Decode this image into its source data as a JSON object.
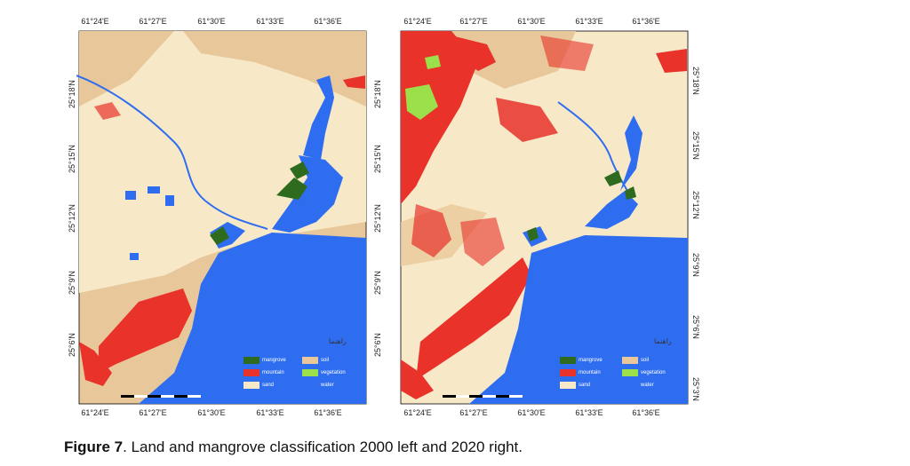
{
  "figure": {
    "caption_label": "Figure 7",
    "caption_text": ". Land and mangrove classification 2000 left and 2020 right."
  },
  "legend": {
    "items": [
      {
        "label": "mangrove",
        "color": "#2e6b1e"
      },
      {
        "label": "soil",
        "color": "#e8c89a"
      },
      {
        "label": "mountain",
        "color": "#e8322a"
      },
      {
        "label": "vegetation",
        "color": "#9be04a"
      },
      {
        "label": "sand",
        "color": "#f7e9c8"
      },
      {
        "label": "water",
        "color": "#2f6df0"
      }
    ],
    "north_label": "راهنما"
  },
  "axes": {
    "lon_ticks": [
      "61°24'E",
      "61°27'E",
      "61°30'E",
      "61°33'E",
      "61°36'E"
    ],
    "lat_ticks_left": [
      "25°18'N",
      "25°15'N",
      "25°12'N",
      "25°9'N",
      "25°6'N"
    ],
    "lat_ticks_right": [
      "25°18'N",
      "25°15'N",
      "25°12'N",
      "25°9'N",
      "25°6'N",
      "25°3'N"
    ]
  },
  "colors": {
    "water": "#2f6df0",
    "sand": "#f7e9c8",
    "soil": "#e8c89a",
    "mountain": "#e8322a",
    "mangrove": "#2e6b1e",
    "vegetation": "#9be04a"
  }
}
